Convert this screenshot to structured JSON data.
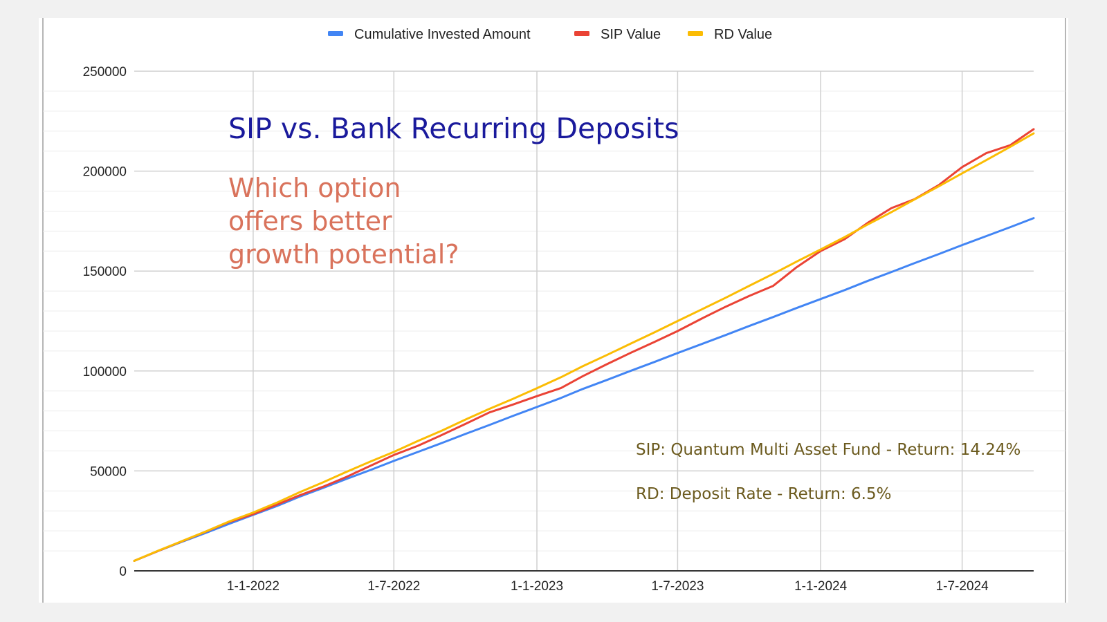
{
  "chart_data": {
    "type": "line",
    "title": "SIP vs. Bank Recurring Deposits",
    "subtitle": [
      "Which option",
      "offers better",
      "growth potential?"
    ],
    "annotations": [
      "SIP: Quantum Multi Asset Fund - Return: 14.24%",
      "RD: Deposit Rate - Return: 6.5%"
    ],
    "xlabel": "",
    "ylabel": "",
    "x_tick_labels": [
      "1-1-2022",
      "1-7-2022",
      "1-1-2023",
      "1-7-2023",
      "1-1-2024",
      "1-7-2024"
    ],
    "x_tick_dates": [
      "2022-01-01",
      "2022-07-01",
      "2023-01-01",
      "2023-07-01",
      "2024-01-01",
      "2024-07-01"
    ],
    "xlim": [
      "2021-08-01",
      "2024-10-01"
    ],
    "y_ticks": [
      0,
      50000,
      100000,
      150000,
      200000,
      250000
    ],
    "ylim": [
      0,
      250000
    ],
    "grid": true,
    "legend_position": "top",
    "x": [
      "2021-08-01",
      "2021-09-01",
      "2021-10-01",
      "2021-11-01",
      "2021-12-01",
      "2022-01-01",
      "2022-02-01",
      "2022-03-01",
      "2022-04-01",
      "2022-05-01",
      "2022-06-01",
      "2022-07-01",
      "2022-08-01",
      "2022-09-01",
      "2022-10-01",
      "2022-11-01",
      "2022-12-01",
      "2023-01-01",
      "2023-02-01",
      "2023-03-01",
      "2023-04-01",
      "2023-05-01",
      "2023-06-01",
      "2023-07-01",
      "2023-08-01",
      "2023-09-01",
      "2023-10-01",
      "2023-11-01",
      "2023-12-01",
      "2024-01-01",
      "2024-02-01",
      "2024-03-01",
      "2024-04-01",
      "2024-05-01",
      "2024-06-01",
      "2024-07-01",
      "2024-08-01",
      "2024-09-01",
      "2024-10-01"
    ],
    "series": [
      {
        "name": "Cumulative Invested Amount",
        "color": "#4285f4",
        "values": [
          5000,
          10000,
          14500,
          19000,
          23500,
          28000,
          32500,
          37000,
          41500,
          46000,
          50500,
          55000,
          59500,
          64000,
          68500,
          73000,
          77500,
          82000,
          86500,
          91000,
          95500,
          100000,
          104500,
          109000,
          113500,
          118000,
          122500,
          127000,
          131500,
          136000,
          140500,
          145000,
          149500,
          154000,
          158500,
          163000,
          167500,
          172000,
          176500
        ]
      },
      {
        "name": "SIP Value",
        "color": "#ea4335",
        "values": [
          5000,
          10000,
          14700,
          19600,
          24400,
          28400,
          33200,
          37700,
          42100,
          47000,
          52600,
          58000,
          62600,
          68000,
          73500,
          79300,
          83200,
          87400,
          91500,
          97400,
          103400,
          109000,
          114500,
          120000,
          126200,
          132200,
          137500,
          142600,
          151900,
          160000,
          166000,
          174000,
          181500,
          186000,
          193000,
          202000,
          209000,
          213000,
          221000
        ]
      },
      {
        "name": "RD Value",
        "color": "#fbbc04",
        "values": [
          5000,
          10100,
          14800,
          19700,
          24700,
          29200,
          34200,
          39200,
          44300,
          49500,
          54700,
          59500,
          65000,
          70200,
          75700,
          81100,
          86000,
          91400,
          96900,
          102400,
          108000,
          113600,
          119300,
          125000,
          130800,
          136700,
          142600,
          148600,
          154700,
          160800,
          167000,
          173200,
          179500,
          185900,
          192400,
          198900,
          205500,
          212200,
          218900
        ]
      }
    ]
  }
}
